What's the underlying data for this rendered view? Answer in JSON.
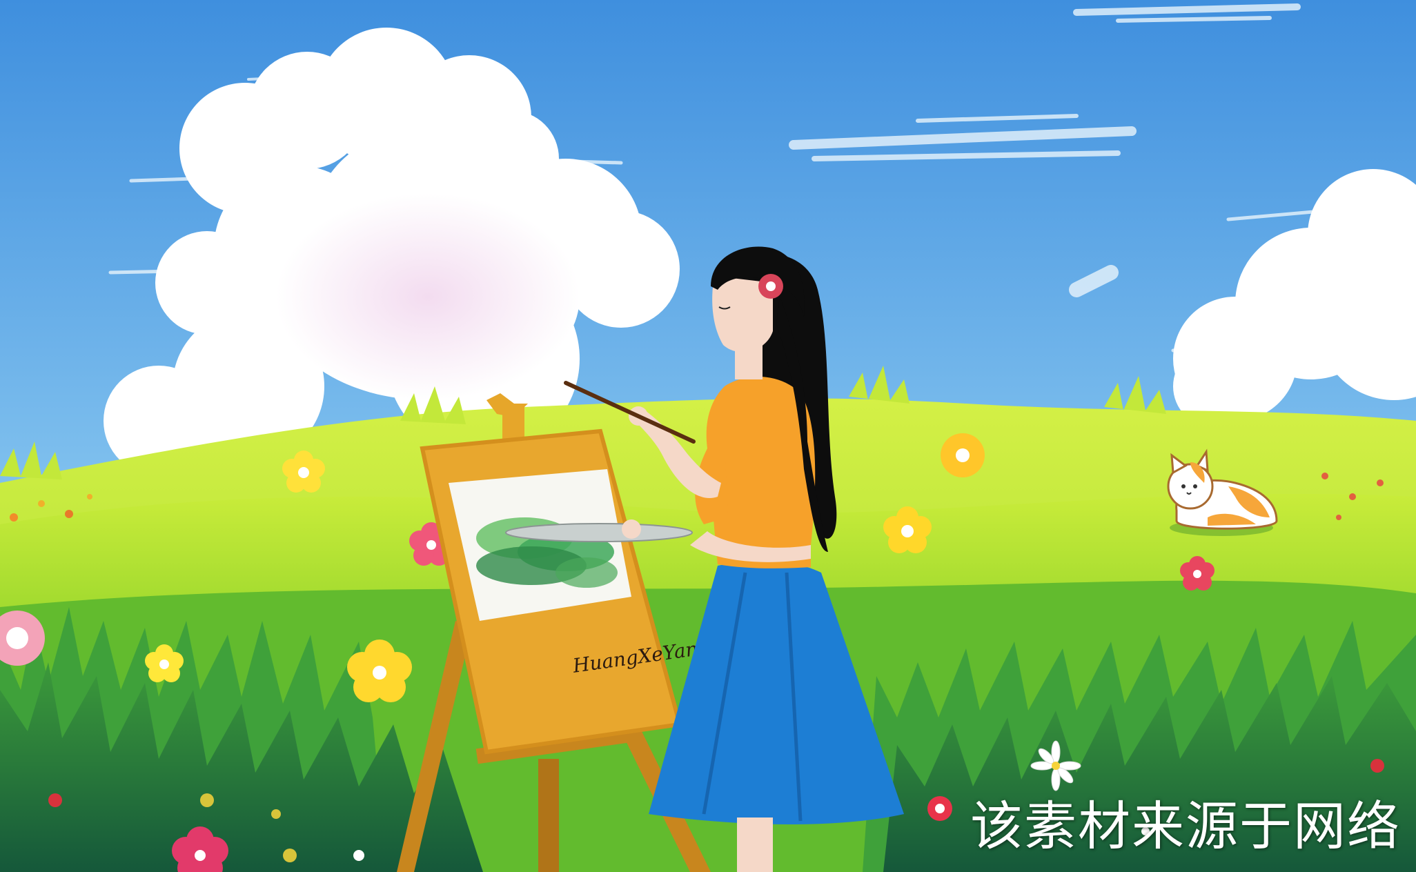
{
  "watermark": {
    "text": "该素材来源于网络"
  },
  "signature": {
    "text": "HuangXeYanLu"
  },
  "colors": {
    "sky_top": "#3f93e0",
    "sky_bottom": "#bfe3f6",
    "cloud": "#ffffff",
    "meadow_light": "#b8e42a",
    "meadow_mid": "#6fc52a",
    "grass_dark": "#1f6e3a",
    "easel": "#e3a62a",
    "shirt": "#f7a52f",
    "skirt": "#1f7fd4",
    "hair": "#111111"
  }
}
